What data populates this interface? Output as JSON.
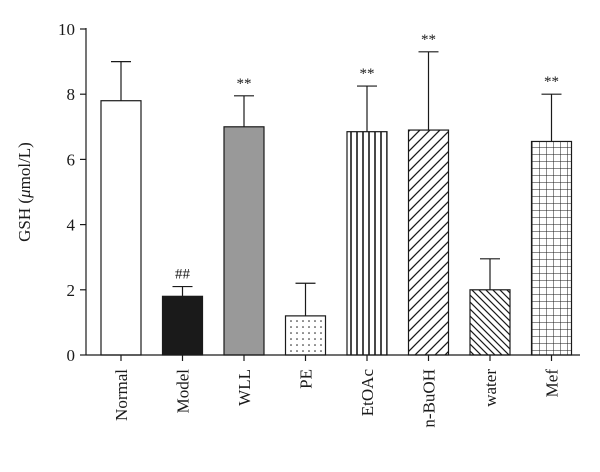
{
  "chart_data": {
    "type": "bar",
    "ylabel_prefix": "GSH (",
    "ylabel_unit": "μ",
    "ylabel_suffix": "mol/L)",
    "ylim": [
      0,
      10
    ],
    "yticks": [
      "0",
      "2",
      "4",
      "6",
      "8",
      "10"
    ],
    "grid": false,
    "categories": [
      "Normal",
      "Model",
      "WLL",
      "PE",
      "EtOAc",
      "n-BuOH",
      "water",
      "Mef"
    ],
    "values": [
      7.8,
      1.8,
      7.0,
      1.2,
      6.85,
      6.9,
      2.0,
      6.55
    ],
    "errors": [
      1.2,
      0.3,
      0.95,
      1.0,
      1.4,
      2.4,
      0.95,
      1.45
    ],
    "annotations": [
      "",
      "##",
      "**",
      "",
      "**",
      "**",
      "",
      "**"
    ],
    "fills": [
      "white",
      "black",
      "gray",
      "dots",
      "vertical-lines",
      "diagonal-up",
      "diagonal-down",
      "grid"
    ],
    "colors": {
      "ink": "#1a1a1a",
      "gray": "#999999",
      "white": "#ffffff"
    }
  }
}
